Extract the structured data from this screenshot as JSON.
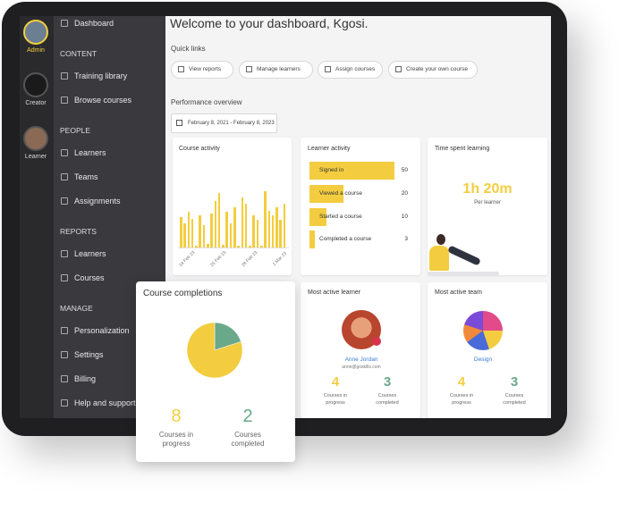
{
  "sidebar": {
    "roles": [
      "Admin",
      "Creator",
      "Learner"
    ],
    "top_item": "Dashboard",
    "sections": [
      {
        "title": "CONTENT",
        "items": [
          "Training library",
          "Browse courses"
        ]
      },
      {
        "title": "PEOPLE",
        "items": [
          "Learners",
          "Teams",
          "Assignments"
        ]
      },
      {
        "title": "REPORTS",
        "items": [
          "Learners",
          "Courses"
        ]
      },
      {
        "title": "MANAGE",
        "items": [
          "Personalization",
          "Settings",
          "Billing",
          "Help and support"
        ]
      }
    ]
  },
  "header": {
    "title": "Welcome to your dashboard, Kgosi."
  },
  "quick_links": {
    "title": "Quick links",
    "items": [
      "View reports",
      "Manage learners",
      "Assign courses",
      "Create your own course"
    ]
  },
  "performance": {
    "title": "Performance overview",
    "date_range": "February 8, 2021 - February 8, 2023"
  },
  "course_activity": {
    "title": "Course activity",
    "values": [
      38,
      30,
      44,
      36,
      2,
      40,
      28,
      4,
      42,
      58,
      68,
      3,
      44,
      30,
      50,
      2,
      62,
      54,
      2,
      40,
      34,
      2,
      70,
      46,
      40,
      50,
      34,
      54
    ],
    "x_labels": [
      "24 Feb 23",
      "25 Feb 23",
      "28 Feb 23",
      "1 Mar 23"
    ]
  },
  "learner_activity": {
    "title": "Learner activity",
    "rows": [
      {
        "label": "Signed in",
        "value": 50
      },
      {
        "label": "Viewed a course",
        "value": 20
      },
      {
        "label": "Started a course",
        "value": 10
      },
      {
        "label": "Completed a course",
        "value": 3
      }
    ]
  },
  "time_spent": {
    "title": "Time spent learning",
    "value": "1h 20m",
    "caption": "Per learner"
  },
  "course_completions": {
    "title": "Course completions",
    "in_progress": 8,
    "in_progress_label": "Courses in progress",
    "completed": 2,
    "completed_label": "Courses completed"
  },
  "most_active_learner": {
    "title": "Most active learner",
    "name": "Anne Jordan",
    "email": "anne@goskills.com",
    "in_progress": 4,
    "in_progress_label": "Courses in progress",
    "completed": 3,
    "completed_label": "Courses completed"
  },
  "most_active_team": {
    "title": "Most active team",
    "name": "Design",
    "in_progress": 4,
    "in_progress_label": "Courses in progress",
    "completed": 3,
    "completed_label": "Courses completed"
  }
}
